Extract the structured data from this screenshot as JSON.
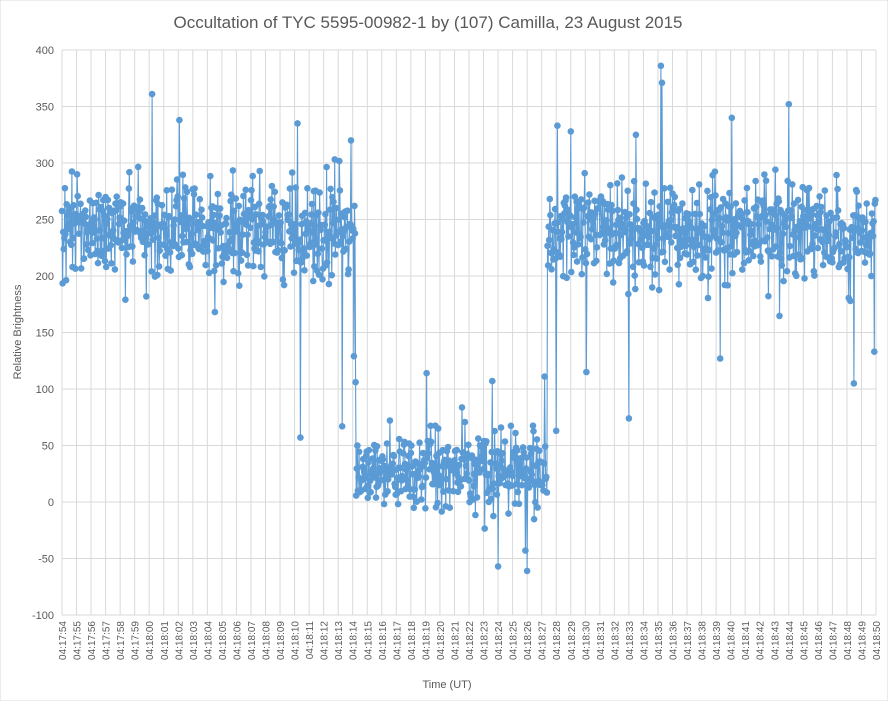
{
  "chart_data": {
    "type": "line",
    "title": "Occultation of TYC 5595-00982-1 by (107) Camilla, 23 August 2015",
    "xlabel": "Time (UT)",
    "ylabel": "Relative Brightness",
    "ylim": [
      -100,
      400
    ],
    "yticks": [
      -100,
      -50,
      0,
      50,
      100,
      150,
      200,
      250,
      300,
      350,
      400
    ],
    "grid": true,
    "legend": "none",
    "series_color": "#5B9BD5",
    "markers": true,
    "x_tick_labels": [
      "04:17:54",
      "04:17:55",
      "04:17:56",
      "04:17:57",
      "04:17:58",
      "04:17:59",
      "04:18:00",
      "04:18:01",
      "04:18:02",
      "04:18:03",
      "04:18:04",
      "04:18:05",
      "04:18:06",
      "04:18:07",
      "04:18:08",
      "04:18:09",
      "04:18:10",
      "04:18:11",
      "04:18:12",
      "04:18:13",
      "04:18:14",
      "04:18:15",
      "04:18:16",
      "04:18:17",
      "04:18:18",
      "04:18:19",
      "04:18:20",
      "04:18:21",
      "04:18:22",
      "04:18:23",
      "04:18:24",
      "04:18:25",
      "04:18:26",
      "04:18:27",
      "04:18:28",
      "04:18:29",
      "04:18:30",
      "04:18:31",
      "04:18:32",
      "04:18:33",
      "04:18:34",
      "04:18:35",
      "04:18:36",
      "04:18:37",
      "04:18:38",
      "04:18:39",
      "04:18:40",
      "04:18:41",
      "04:18:42",
      "04:18:43",
      "04:18:44",
      "04:18:45",
      "04:18:46",
      "04:18:47",
      "04:18:48",
      "04:18:49",
      "04:18:50"
    ],
    "samples_per_second": 25,
    "segments": [
      {
        "from": "04:17:54",
        "to": "04:18:14.2",
        "mean": 242,
        "spread": 36
      },
      {
        "from": "04:18:14.2",
        "to": "04:18:27.4",
        "mean": 28,
        "spread": 30
      },
      {
        "from": "04:18:27.4",
        "to": "04:18:50",
        "mean": 240,
        "spread": 38
      }
    ],
    "notable_points": [
      {
        "x": "04:18:00.2",
        "y": 361
      },
      {
        "x": "04:18:02.1",
        "y": 338
      },
      {
        "x": "04:18:10.2",
        "y": 335
      },
      {
        "x": "04:18:10.4",
        "y": 57
      },
      {
        "x": "04:18:13.3",
        "y": 67
      },
      {
        "x": "04:18:13.9",
        "y": 320
      },
      {
        "x": "04:18:14.1",
        "y": 129
      },
      {
        "x": "04:18:14.2",
        "y": 106
      },
      {
        "x": "04:18:19.1",
        "y": 114
      },
      {
        "x": "04:18:23.6",
        "y": 107
      },
      {
        "x": "04:18:24.0",
        "y": -57
      },
      {
        "x": "04:18:25.9",
        "y": -43
      },
      {
        "x": "04:18:26.0",
        "y": -61
      },
      {
        "x": "04:18:27.2",
        "y": 111
      },
      {
        "x": "04:18:28.0",
        "y": 63
      },
      {
        "x": "04:18:28.1",
        "y": 333
      },
      {
        "x": "04:18:29.0",
        "y": 328
      },
      {
        "x": "04:18:30.1",
        "y": 115
      },
      {
        "x": "04:18:33.0",
        "y": 74
      },
      {
        "x": "04:18:33.5",
        "y": 325
      },
      {
        "x": "04:18:35.2",
        "y": 386
      },
      {
        "x": "04:18:35.3",
        "y": 371
      },
      {
        "x": "04:18:39.3",
        "y": 127
      },
      {
        "x": "04:18:40.1",
        "y": 340
      },
      {
        "x": "04:18:44.0",
        "y": 352
      },
      {
        "x": "04:18:48.5",
        "y": 105
      },
      {
        "x": "04:18:49.9",
        "y": 133
      }
    ]
  }
}
